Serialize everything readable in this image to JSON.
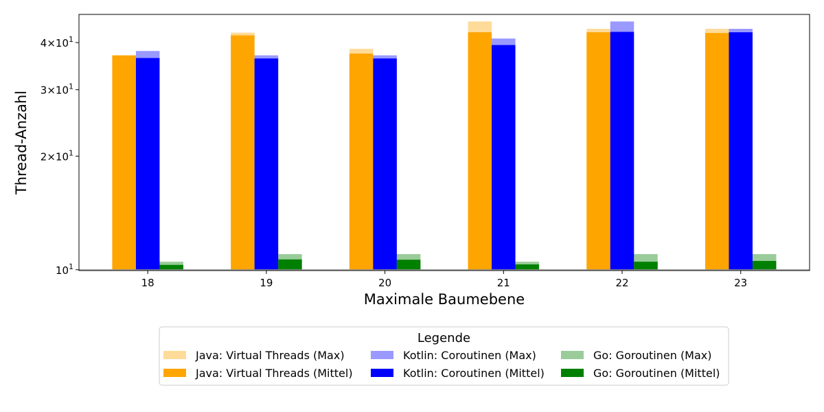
{
  "chart_data": {
    "type": "bar",
    "title": "",
    "xlabel": "Maximale Baumebene",
    "ylabel": "Thread-Anzahl",
    "yscale": "log",
    "ylim": [
      9.95,
      47.5
    ],
    "categories": [
      "18",
      "19",
      "20",
      "21",
      "22",
      "23"
    ],
    "yticks": [
      {
        "value": 10,
        "label": "10",
        "exp": "1",
        "coef": ""
      },
      {
        "value": 20,
        "label": "2×10",
        "exp": "1",
        "coef": "2"
      },
      {
        "value": 30,
        "label": "3×10",
        "exp": "1",
        "coef": "3"
      },
      {
        "value": 40,
        "label": "4×10",
        "exp": "1",
        "coef": "4"
      }
    ],
    "series": [
      {
        "name": "Java: Virtual Threads (Max)",
        "group": 0,
        "kind": "max",
        "color": "#ffa500",
        "opacity": 0.4,
        "values": [
          37,
          42.5,
          38.5,
          45.5,
          43.5,
          43.5
        ]
      },
      {
        "name": "Java: Virtual Threads (Mittel)",
        "group": 0,
        "kind": "mean",
        "color": "#ffa500",
        "opacity": 1,
        "values": [
          37,
          41.8,
          37.4,
          42.6,
          42.6,
          42.4
        ]
      },
      {
        "name": "Kotlin: Coroutinen (Max)",
        "group": 1,
        "kind": "max",
        "color": "#0000ff",
        "opacity": 0.4,
        "values": [
          38,
          37,
          37,
          41,
          45.5,
          43.5
        ]
      },
      {
        "name": "Kotlin: Coroutinen (Mittel)",
        "group": 1,
        "kind": "mean",
        "color": "#0000ff",
        "opacity": 1,
        "values": [
          36.4,
          36.3,
          36.3,
          39.4,
          42.7,
          42.6
        ]
      },
      {
        "name": "Go: Goroutinen (Max)",
        "group": 2,
        "kind": "max",
        "color": "#008000",
        "opacity": 0.4,
        "values": [
          10.5,
          11,
          11,
          10.5,
          11,
          11
        ]
      },
      {
        "name": "Go: Goroutinen (Mittel)",
        "group": 2,
        "kind": "mean",
        "color": "#008000",
        "opacity": 1,
        "values": [
          10.3,
          10.65,
          10.63,
          10.33,
          10.5,
          10.55
        ]
      }
    ],
    "grid": false,
    "legend": {
      "title": "Legende",
      "placement": "bottom-center",
      "columns": 3
    }
  }
}
